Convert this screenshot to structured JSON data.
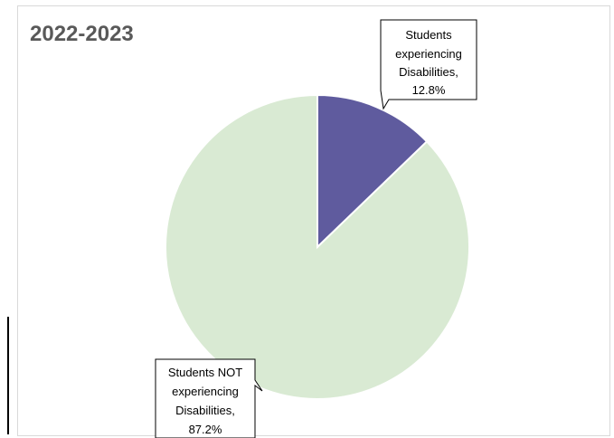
{
  "chart_data": {
    "type": "pie",
    "title": "2022-2023",
    "slices": [
      {
        "label_lines": [
          "Students",
          "experiencing",
          "Disabilities,",
          "12.8%"
        ],
        "value": 12.8,
        "color": "#5f5b9e"
      },
      {
        "label_lines": [
          "Students NOT",
          "experiencing",
          "Disabilities,",
          "87.2%"
        ],
        "value": 87.2,
        "color": "#d9ead3"
      }
    ],
    "legend": "none",
    "labels": "callouts"
  }
}
